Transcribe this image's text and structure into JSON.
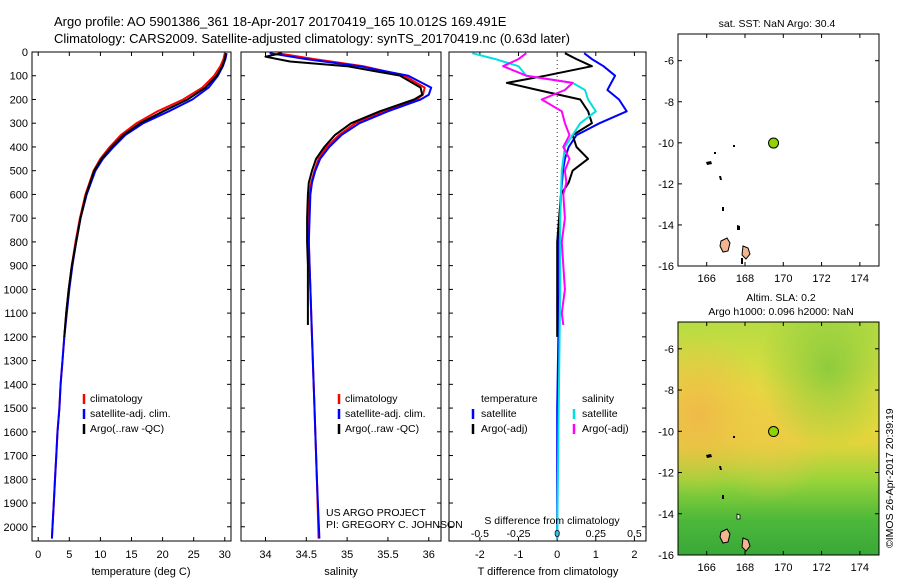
{
  "title_line1": "Argo profile: AO 5901386_361 18-Apr-2017 20170419_165 10.012S 169.491E",
  "title_line2": "Climatology: CARS2009. Satellite-adjusted climatology: synTS_20170419.nc (0.63d later)",
  "colors": {
    "climatology": "#ff0000",
    "satellite": "#0000ff",
    "argo": "#000000",
    "sat_s": "#00e0e0",
    "argo_s": "#ff00ff",
    "float_marker": "#8fd400",
    "land": "#f2b58f"
  },
  "chart_data": [
    {
      "type": "line",
      "name": "temperature-profile",
      "xlabel": "temperature (deg C)",
      "xlim": [
        -1,
        31
      ],
      "ylim": [
        0,
        2060
      ],
      "xticks": [
        0,
        5,
        10,
        15,
        20,
        25,
        30
      ],
      "yticks": [
        0,
        100,
        200,
        300,
        400,
        500,
        600,
        700,
        800,
        900,
        1000,
        1100,
        1200,
        1300,
        1400,
        1500,
        1600,
        1700,
        1800,
        1900,
        2000
      ],
      "legend": [
        "climatology",
        "satellite-adj. clim.",
        "Argo(..raw -QC)"
      ],
      "series": [
        {
          "name": "climatology",
          "color": "#ff0000",
          "depth": [
            5,
            30,
            60,
            100,
            150,
            200,
            250,
            300,
            350,
            400,
            450,
            500,
            600,
            700,
            800,
            900,
            1000,
            1100,
            1200,
            1300,
            1400,
            1500,
            1600,
            1700,
            1800,
            1900,
            2000,
            2050
          ],
          "values": [
            30.0,
            29.8,
            29.3,
            28.3,
            26.4,
            23.3,
            19.2,
            15.8,
            13.3,
            11.5,
            10.0,
            8.9,
            7.6,
            6.7,
            6.0,
            5.4,
            4.9,
            4.5,
            4.2,
            3.9,
            3.6,
            3.4,
            3.1,
            2.9,
            2.7,
            2.5,
            2.3,
            2.2
          ]
        },
        {
          "name": "satellite-adj. clim.",
          "color": "#0000ff",
          "depth": [
            5,
            30,
            60,
            100,
            150,
            200,
            250,
            300,
            350,
            400,
            450,
            500,
            600,
            700,
            800,
            900,
            1000,
            1100,
            1200,
            1300,
            1400,
            1500,
            1600,
            1700,
            1800,
            1900,
            2000,
            2050
          ],
          "values": [
            30.3,
            30.1,
            29.7,
            28.9,
            27.4,
            24.8,
            21.0,
            16.9,
            14.0,
            12.1,
            10.4,
            9.2,
            7.8,
            6.8,
            6.1,
            5.5,
            5.0,
            4.6,
            4.2,
            3.9,
            3.6,
            3.4,
            3.1,
            2.9,
            2.7,
            2.5,
            2.3,
            2.2
          ]
        },
        {
          "name": "Argo(..raw -QC)",
          "color": "#000000",
          "depth": [
            5,
            30,
            60,
            100,
            150,
            200,
            250,
            300,
            350,
            400,
            450,
            500,
            600,
            700,
            800,
            900,
            1000,
            1100,
            1200
          ],
          "values": [
            30.2,
            30.0,
            29.6,
            28.7,
            26.9,
            24.0,
            20.1,
            16.4,
            13.7,
            11.8,
            10.2,
            9.0,
            7.7,
            6.8,
            6.1,
            5.4,
            4.9,
            4.5,
            4.2
          ]
        }
      ]
    },
    {
      "type": "line",
      "name": "salinity-profile",
      "xlabel": "salinity",
      "xlim": [
        33.7,
        36.15
      ],
      "ylim": [
        0,
        2060
      ],
      "xticks": [
        34,
        34.5,
        35,
        35.5,
        36
      ],
      "legend": [
        "climatology",
        "satellite-adj. clim.",
        "Argo(..raw -QC)"
      ],
      "series": [
        {
          "name": "climatology",
          "color": "#ff0000",
          "depth": [
            5,
            30,
            60,
            100,
            150,
            180,
            200,
            250,
            300,
            350,
            400,
            450,
            500,
            550,
            600,
            700,
            800,
            900,
            1000,
            1200,
            1500,
            1800,
            2050
          ],
          "values": [
            34.15,
            34.6,
            35.2,
            35.7,
            35.95,
            35.93,
            35.85,
            35.45,
            35.1,
            34.9,
            34.75,
            34.65,
            34.6,
            34.56,
            34.54,
            34.53,
            34.53,
            34.54,
            34.55,
            34.57,
            34.6,
            34.63,
            34.65
          ]
        },
        {
          "name": "satellite-adj. clim.",
          "color": "#0000ff",
          "depth": [
            5,
            30,
            60,
            100,
            150,
            180,
            200,
            250,
            300,
            350,
            400,
            450,
            500,
            550,
            600,
            700,
            800,
            900,
            1000,
            1200,
            1500,
            1800,
            2050
          ],
          "values": [
            34.05,
            34.5,
            35.15,
            35.75,
            36.03,
            36.0,
            35.9,
            35.5,
            35.15,
            34.93,
            34.78,
            34.67,
            34.61,
            34.57,
            34.55,
            34.54,
            34.53,
            34.54,
            34.55,
            34.57,
            34.6,
            34.63,
            34.66
          ]
        },
        {
          "name": "Argo(..raw -QC)",
          "color": "#000000",
          "depth": [
            5,
            20,
            40,
            60,
            100,
            150,
            180,
            200,
            250,
            300,
            350,
            400,
            450,
            500,
            550,
            600,
            700,
            800,
            900,
            1000,
            1100,
            1150
          ],
          "values": [
            34.2,
            34.0,
            34.3,
            35.0,
            35.65,
            35.9,
            35.92,
            35.82,
            35.4,
            35.05,
            34.85,
            34.72,
            34.62,
            34.57,
            34.53,
            34.52,
            34.51,
            34.51,
            34.52,
            34.52,
            34.52,
            34.52
          ]
        }
      ]
    },
    {
      "type": "line",
      "name": "difference-profile",
      "xlabel": "T difference from climatology",
      "xlabel2": "S difference from climatology",
      "xlim": [
        -2.8,
        2.3
      ],
      "ylim": [
        0,
        2060
      ],
      "xticks": [
        -2,
        -1,
        0,
        1,
        2
      ],
      "xticks_s": [
        -0.5,
        -0.25,
        0,
        0.25,
        0.5
      ],
      "legend_titles": [
        "temperature",
        "salinity"
      ],
      "legend": [
        "satellite",
        "Argo(-adj)",
        "satellite",
        "Argo(-adj)"
      ],
      "series": [
        {
          "name": "T satellite",
          "color": "#0000ff",
          "depth": [
            5,
            30,
            60,
            100,
            130,
            160,
            200,
            250,
            300,
            350,
            400,
            450,
            500,
            600,
            800,
            1000,
            1500,
            2050
          ],
          "values": [
            0.7,
            0.9,
            1.2,
            1.5,
            1.4,
            1.3,
            1.6,
            1.8,
            1.1,
            0.5,
            0.3,
            0.2,
            0.15,
            0.1,
            0.05,
            0.05,
            0.0,
            0.0
          ]
        },
        {
          "name": "T Argo(-adj)",
          "color": "#000000",
          "depth": [
            5,
            30,
            60,
            100,
            130,
            160,
            200,
            250,
            300,
            350,
            400,
            450,
            500,
            550,
            600,
            700,
            800,
            900,
            1000,
            1100,
            1200
          ],
          "values": [
            0.2,
            0.5,
            0.9,
            -0.3,
            -1.3,
            -0.5,
            0.6,
            0.8,
            0.9,
            0.4,
            0.5,
            0.8,
            0.4,
            0.3,
            0.1,
            0.05,
            0.0,
            0.0,
            0.0,
            0.0,
            0.0
          ]
        },
        {
          "name": "S satellite",
          "color": "#00e0e0",
          "depth": [
            5,
            30,
            60,
            100,
            130,
            160,
            200,
            250,
            300,
            350,
            400,
            500,
            700,
            1000,
            1500,
            2050
          ],
          "values": [
            -0.55,
            -0.4,
            -0.25,
            -0.2,
            0.1,
            0.18,
            0.2,
            0.25,
            0.15,
            0.1,
            0.05,
            0.03,
            0.02,
            0.02,
            0.01,
            0.0
          ]
        },
        {
          "name": "S Argo(-adj)",
          "color": "#ff00ff",
          "depth": [
            5,
            30,
            60,
            100,
            130,
            160,
            200,
            250,
            300,
            350,
            400,
            450,
            500,
            550,
            600,
            700,
            800,
            900,
            1000,
            1100,
            1150
          ],
          "values": [
            -0.2,
            -0.25,
            -0.35,
            -0.2,
            0.1,
            0.05,
            -0.1,
            0.03,
            0.05,
            0.08,
            0.04,
            0.08,
            0.05,
            0.06,
            0.04,
            0.05,
            0.03,
            0.04,
            0.05,
            0.03,
            0.04
          ]
        }
      ]
    },
    {
      "type": "scatter",
      "name": "sst-map",
      "title": "sat. SST: NaN Argo: 30.4",
      "xlim": [
        164.5,
        175
      ],
      "ylim": [
        -16,
        -4.7
      ],
      "xticks": [
        166,
        168,
        170,
        172,
        174
      ],
      "yticks": [
        -6,
        -8,
        -10,
        -12,
        -14,
        -16
      ],
      "float_position": {
        "lon": 169.491,
        "lat": -10.012
      }
    },
    {
      "type": "heatmap",
      "name": "sla-map",
      "title_line1": "Altim. SLA: 0.2",
      "title_line2": "Argo h1000: 0.096 h2000: NaN",
      "xlim": [
        164.5,
        175
      ],
      "ylim": [
        -16,
        -4.7
      ],
      "xticks": [
        166,
        168,
        170,
        172,
        174
      ],
      "yticks": [
        -6,
        -8,
        -10,
        -12,
        -14,
        -16
      ],
      "float_position": {
        "lon": 169.491,
        "lat": -10.012
      }
    }
  ],
  "credits": {
    "project": "US ARGO PROJECT",
    "pi": "PI: GREGORY C. JOHNSON",
    "timestamp": "©IMOS 26-Apr-2017 20:39:19"
  }
}
